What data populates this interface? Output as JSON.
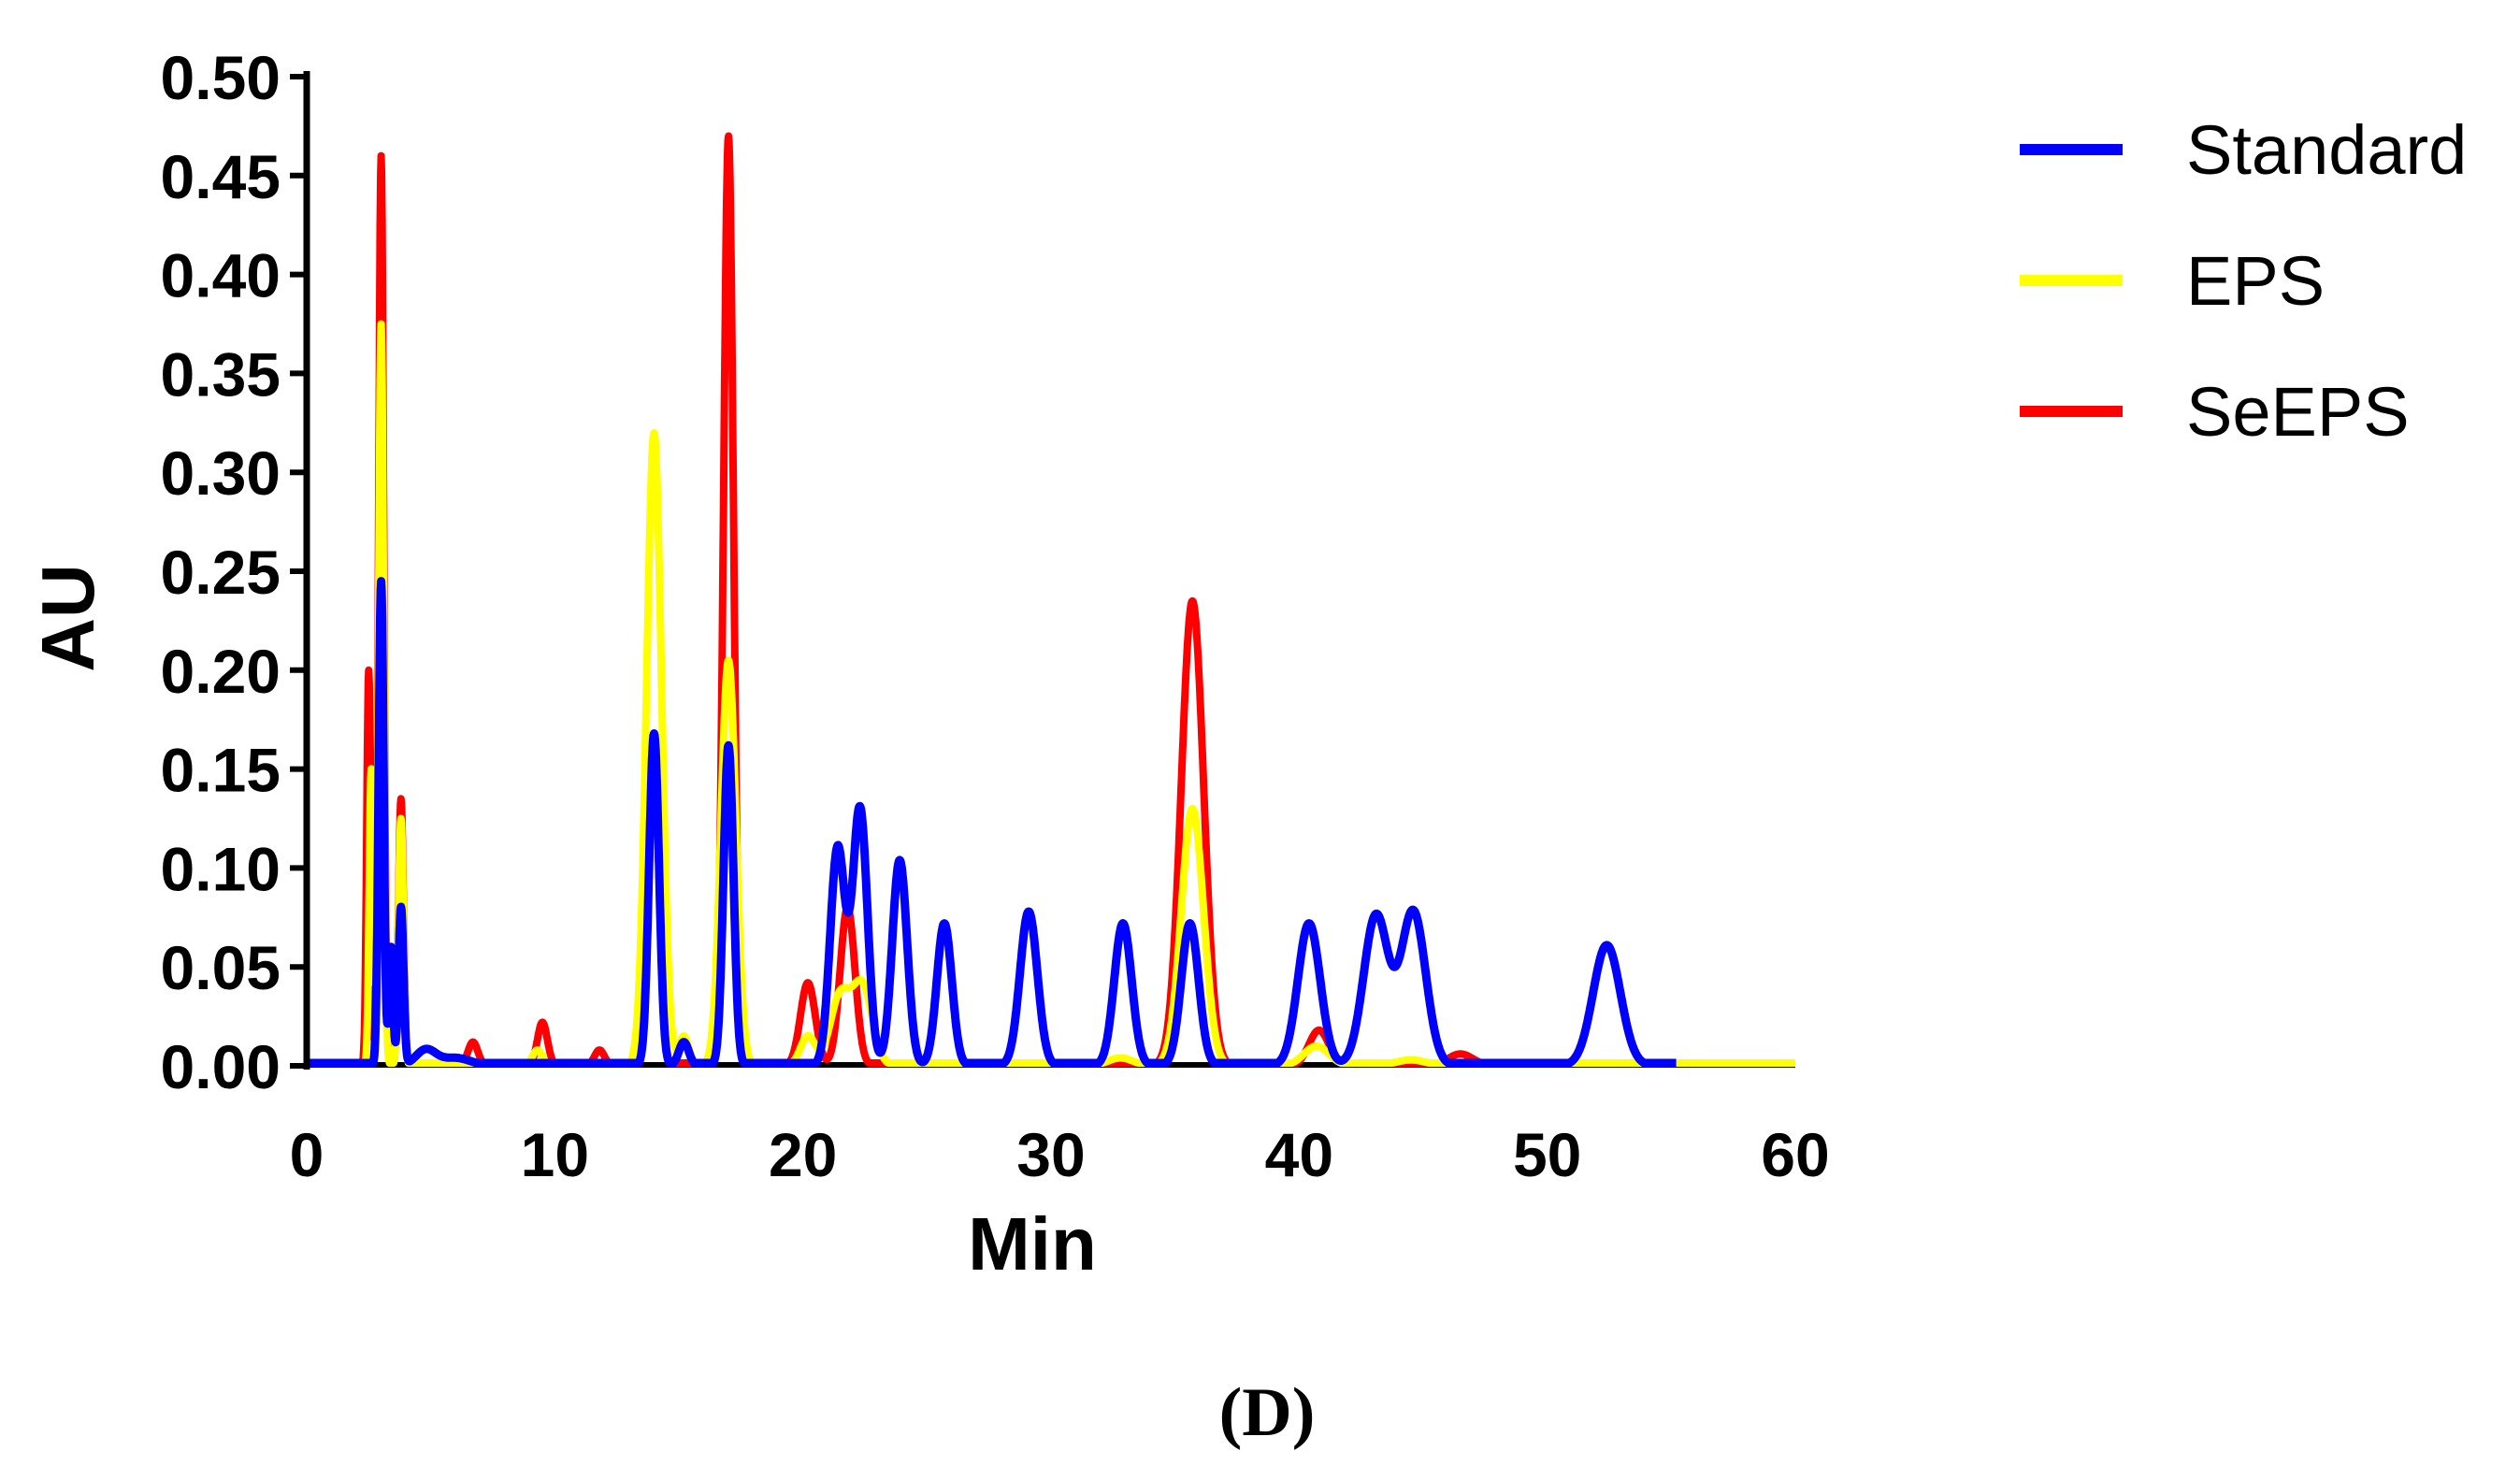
{
  "chart_data": {
    "type": "line",
    "title": "",
    "xlabel": "Min",
    "ylabel": "AU",
    "xlim": [
      0,
      60
    ],
    "ylim": [
      0,
      0.5
    ],
    "xticks": [
      "0",
      "10",
      "20",
      "30",
      "40",
      "50",
      "60"
    ],
    "yticks": [
      "0.00",
      "0.05",
      "0.10",
      "0.15",
      "0.20",
      "0.25",
      "0.30",
      "0.35",
      "0.40",
      "0.45",
      "0.50"
    ],
    "grid": false,
    "legend_position": "top-right",
    "panel_label": "(D)",
    "series": [
      {
        "name": "SeEPS",
        "color": "#ff0000",
        "x_end": 60,
        "peaks": [
          {
            "x": 2.5,
            "y": 0.2,
            "w": 0.08
          },
          {
            "x": 3.0,
            "y": 0.46,
            "w": 0.1
          },
          {
            "x": 3.8,
            "y": 0.135,
            "w": 0.1
          },
          {
            "x": 6.7,
            "y": 0.012,
            "w": 0.2
          },
          {
            "x": 9.5,
            "y": 0.022,
            "w": 0.2
          },
          {
            "x": 11.8,
            "y": 0.008,
            "w": 0.2
          },
          {
            "x": 14.0,
            "y": 0.16,
            "w": 0.2
          },
          {
            "x": 17.0,
            "y": 0.47,
            "w": 0.2
          },
          {
            "x": 20.2,
            "y": 0.042,
            "w": 0.3
          },
          {
            "x": 21.8,
            "y": 0.08,
            "w": 0.3
          },
          {
            "x": 35.7,
            "y": 0.235,
            "w": 0.45
          },
          {
            "x": 40.8,
            "y": 0.018,
            "w": 0.4
          },
          {
            "x": 46.5,
            "y": 0.006,
            "w": 0.5
          }
        ]
      },
      {
        "name": "EPS",
        "color": "#ffff00",
        "x_end": 60,
        "peaks": [
          {
            "x": 2.6,
            "y": 0.15,
            "w": 0.08
          },
          {
            "x": 3.0,
            "y": 0.375,
            "w": 0.1
          },
          {
            "x": 3.8,
            "y": 0.125,
            "w": 0.1
          },
          {
            "x": 9.3,
            "y": 0.008,
            "w": 0.2
          },
          {
            "x": 14.0,
            "y": 0.32,
            "w": 0.3
          },
          {
            "x": 15.2,
            "y": 0.015,
            "w": 0.2
          },
          {
            "x": 17.0,
            "y": 0.205,
            "w": 0.3
          },
          {
            "x": 20.2,
            "y": 0.015,
            "w": 0.3
          },
          {
            "x": 21.5,
            "y": 0.035,
            "w": 0.4
          },
          {
            "x": 22.4,
            "y": 0.04,
            "w": 0.4
          },
          {
            "x": 32.8,
            "y": 0.004,
            "w": 0.5
          },
          {
            "x": 35.7,
            "y": 0.13,
            "w": 0.45
          },
          {
            "x": 40.7,
            "y": 0.01,
            "w": 0.5
          },
          {
            "x": 44.5,
            "y": 0.003,
            "w": 0.6
          }
        ]
      },
      {
        "name": "Standard",
        "color": "#0000ff",
        "x_end": 55.2,
        "peaks": [
          {
            "x": 3.0,
            "y": 0.245,
            "w": 0.1
          },
          {
            "x": 3.4,
            "y": 0.06,
            "w": 0.08
          },
          {
            "x": 3.8,
            "y": 0.08,
            "w": 0.1
          },
          {
            "x": 4.8,
            "y": 0.008,
            "w": 0.4
          },
          {
            "x": 6.0,
            "y": 0.004,
            "w": 0.6
          },
          {
            "x": 14.0,
            "y": 0.168,
            "w": 0.2
          },
          {
            "x": 15.2,
            "y": 0.012,
            "w": 0.2
          },
          {
            "x": 17.0,
            "y": 0.162,
            "w": 0.2
          },
          {
            "x": 21.4,
            "y": 0.11,
            "w": 0.3
          },
          {
            "x": 22.3,
            "y": 0.13,
            "w": 0.3
          },
          {
            "x": 23.9,
            "y": 0.104,
            "w": 0.3
          },
          {
            "x": 25.7,
            "y": 0.072,
            "w": 0.3
          },
          {
            "x": 29.1,
            "y": 0.078,
            "w": 0.35
          },
          {
            "x": 32.9,
            "y": 0.072,
            "w": 0.35
          },
          {
            "x": 35.6,
            "y": 0.072,
            "w": 0.35
          },
          {
            "x": 40.4,
            "y": 0.072,
            "w": 0.45
          },
          {
            "x": 43.1,
            "y": 0.076,
            "w": 0.5
          },
          {
            "x": 44.6,
            "y": 0.078,
            "w": 0.5
          },
          {
            "x": 52.4,
            "y": 0.061,
            "w": 0.55
          }
        ]
      }
    ]
  }
}
